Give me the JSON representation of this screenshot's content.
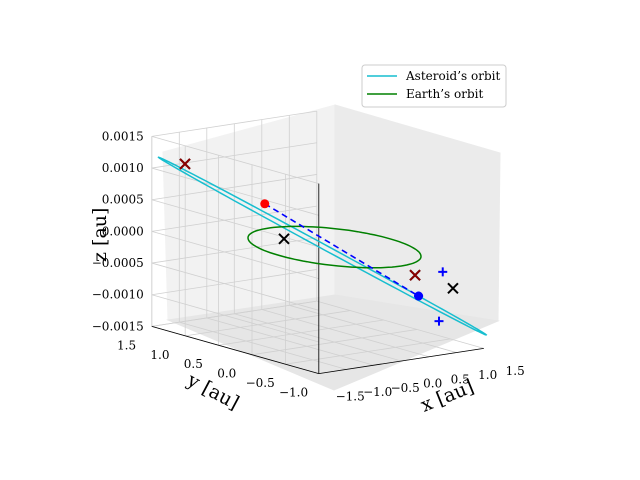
{
  "chart_data": {
    "type": "line",
    "projection": "3d",
    "xlabel": "x [au]",
    "ylabel": "y [au]",
    "zlabel": "z [au]",
    "xlim": [
      -1.5,
      1.5
    ],
    "ylim": [
      -1.0,
      1.5
    ],
    "zlim": [
      -0.0015,
      0.0015
    ],
    "x_ticks": [
      "−1.5",
      "−1.0",
      "−0.5",
      "0.0",
      "0.5",
      "1.0",
      "1.5"
    ],
    "y_ticks": [
      "−1.0",
      "−0.5",
      "0.0",
      "0.5",
      "1.0",
      "1.5"
    ],
    "z_ticks": [
      "−0.0015",
      "−0.0010",
      "−0.0005",
      "0.0000",
      "0.0005",
      "0.0010",
      "0.0015"
    ],
    "grid": true,
    "legend": {
      "position": "upper right",
      "entries": [
        {
          "name": "Asteroid’s orbit",
          "color": "#17becf"
        },
        {
          "name": "Earth’s orbit",
          "color": "#008000"
        }
      ]
    },
    "series": [
      {
        "name": "Asteroid’s orbit",
        "kind": "ellipse",
        "color": "#17becf",
        "center": [
          -0.1,
          0.1,
          0.0
        ],
        "axis_u": [
          1.4,
          -1.3,
          -0.0012
        ],
        "axis_v": [
          0.14,
          0.15,
          0.0
        ]
      },
      {
        "name": "Earth’s orbit",
        "kind": "ellipse",
        "color": "#008000",
        "center": [
          0.0,
          0.0,
          0.0
        ],
        "axis_u": [
          1.0,
          0.0,
          0.0
        ],
        "axis_v": [
          0.0,
          1.0,
          0.0
        ]
      }
    ],
    "connector": {
      "style": "dashed",
      "color": "#0000ff",
      "from": [
        -0.6,
        0.55,
        0.0006
      ],
      "to": [
        0.8,
        -0.6,
        -0.0007
      ]
    },
    "markers": [
      {
        "type": "x",
        "color": "#000000",
        "position": [
          -1.2,
          1.25,
          0.0011
        ]
      },
      {
        "type": "x",
        "color": "#8b0000",
        "position": [
          -1.2,
          1.25,
          0.0011
        ]
      },
      {
        "type": "x",
        "color": "#000000",
        "position": [
          -0.25,
          0.55,
          0.0
        ]
      },
      {
        "type": "x",
        "color": "#000000",
        "position": [
          1.1,
          -0.3,
          -0.0005
        ]
      },
      {
        "type": "x",
        "color": "#8b0000",
        "position": [
          1.1,
          -0.3,
          -0.0005
        ]
      },
      {
        "type": "x",
        "color": "#000000",
        "position": [
          1.0,
          -0.95,
          -0.0005
        ]
      },
      {
        "type": "plus",
        "color": "#0000ff",
        "position": [
          1.05,
          -0.7,
          -0.0011
        ]
      },
      {
        "type": "plus",
        "color": "#0000ff",
        "position": [
          0.8,
          -0.6,
          -0.0007
        ]
      },
      {
        "type": "plus",
        "color": "#0000ff",
        "position": [
          1.3,
          -0.55,
          -0.0004
        ]
      },
      {
        "type": "dot",
        "color": "#ff0000",
        "position": [
          -0.6,
          0.55,
          0.0006
        ]
      },
      {
        "type": "dot",
        "color": "#0000ff",
        "position": [
          0.8,
          -0.6,
          -0.0007
        ]
      }
    ]
  }
}
